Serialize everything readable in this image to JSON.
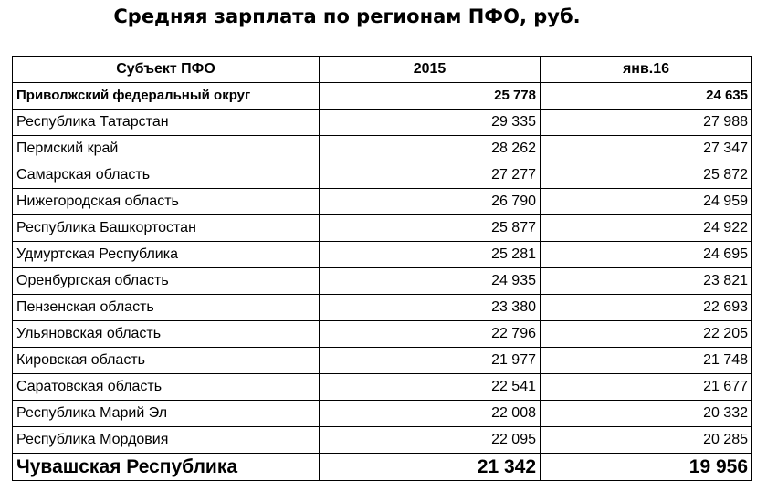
{
  "title": "Средняя зарплата по регионам ПФО, руб.",
  "table": {
    "headers": [
      "Субъект ПФО",
      "2015",
      "янв.16"
    ],
    "rows": [
      {
        "region": "Приволжский  федеральный округ",
        "y2015": "25 778",
        "jan16": "24 635"
      },
      {
        "region": "Республика Татарстан",
        "y2015": "29 335",
        "jan16": "27 988"
      },
      {
        "region": "Пермский край",
        "y2015": "28 262",
        "jan16": "27 347"
      },
      {
        "region": "Самарская область",
        "y2015": "27 277",
        "jan16": "25 872"
      },
      {
        "region": "Нижегородская область",
        "y2015": "26 790",
        "jan16": "24 959"
      },
      {
        "region": "Республика Башкортостан",
        "y2015": "25 877",
        "jan16": "24 922"
      },
      {
        "region": "Удмуртская Республика",
        "y2015": "25 281",
        "jan16": "24 695"
      },
      {
        "region": "Оренбургская область",
        "y2015": "24 935",
        "jan16": "23 821"
      },
      {
        "region": "Пензенская область",
        "y2015": "23 380",
        "jan16": "22 693"
      },
      {
        "region": "Ульяновская область",
        "y2015": "22 796",
        "jan16": "22 205"
      },
      {
        "region": "Кировская область",
        "y2015": "21 977",
        "jan16": "21 748"
      },
      {
        "region": "Саратовская область",
        "y2015": "22 541",
        "jan16": "21 677"
      },
      {
        "region": "Республика Марий Эл",
        "y2015": "22 008",
        "jan16": "20 332"
      },
      {
        "region": "Республика Мордовия",
        "y2015": "22 095",
        "jan16": "20 285"
      },
      {
        "region": "Чувашская Республика",
        "y2015": "21 342",
        "jan16": "19 956"
      }
    ]
  }
}
